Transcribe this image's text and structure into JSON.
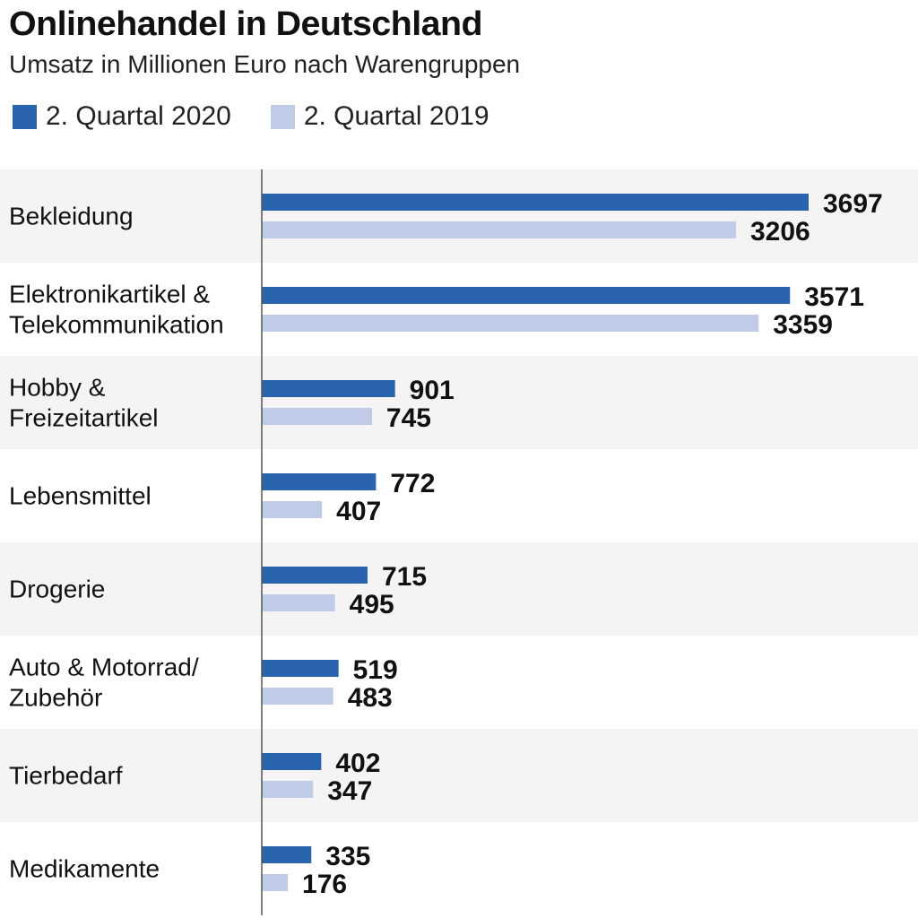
{
  "chart_data": {
    "type": "bar",
    "orientation": "horizontal",
    "title": "Onlinehandel in Deutschland",
    "subtitle": "Umsatz in Millionen Euro nach Warengruppen",
    "categories": [
      [
        "Bekleidung"
      ],
      [
        "Elektronikartikel &",
        "Telekommunikation"
      ],
      [
        "Hobby &",
        "Freizeitartikel"
      ],
      [
        "Lebensmittel"
      ],
      [
        "Drogerie"
      ],
      [
        "Auto & Motorrad/",
        "Zubehör"
      ],
      [
        "Tierbedarf"
      ],
      [
        "Medikamente"
      ]
    ],
    "series": [
      {
        "name": "2. Quartal 2020",
        "color": "#2a64ac",
        "values": [
          3697,
          3571,
          901,
          772,
          715,
          519,
          402,
          335
        ]
      },
      {
        "name": "2. Quartal 2019",
        "color": "#c0cbe8",
        "values": [
          3206,
          3359,
          745,
          407,
          495,
          483,
          347,
          176
        ]
      }
    ],
    "xlim": [
      0,
      3697
    ],
    "grid": false,
    "legend_position": "top-left",
    "row_band_color": "#f4f4f4",
    "axis_color": "#555555"
  }
}
